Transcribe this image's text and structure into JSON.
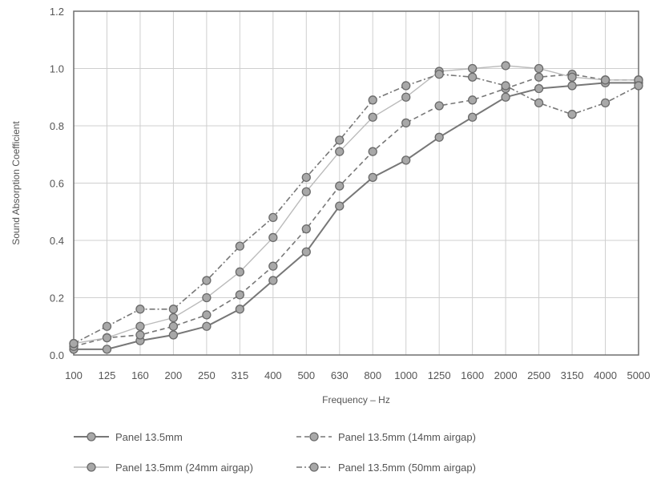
{
  "chart_data": {
    "type": "line",
    "title": "",
    "xlabel": "Frequency – Hz",
    "ylabel": "Sound Absorption Coefficient",
    "x": [
      "100",
      "125",
      "160",
      "200",
      "250",
      "315",
      "400",
      "500",
      "630",
      "800",
      "1000",
      "1250",
      "1600",
      "2000",
      "2500",
      "3150",
      "4000",
      "5000"
    ],
    "ylim": [
      0,
      1.2
    ],
    "yticks": [
      "0.0",
      "0.2",
      "0.4",
      "0.6",
      "0.8",
      "1.0",
      "1.2"
    ],
    "grid": true,
    "legend_position": "bottom",
    "series": [
      {
        "name": "Panel 13.5mm",
        "style": "solid",
        "color": "#777777",
        "values": [
          0.02,
          0.02,
          0.05,
          0.07,
          0.1,
          0.16,
          0.26,
          0.36,
          0.52,
          0.62,
          0.68,
          0.76,
          0.83,
          0.9,
          0.93,
          0.94,
          0.95,
          0.95
        ]
      },
      {
        "name": "Panel 13.5mm  (14mm airgap)",
        "style": "dashed",
        "color": "#777777",
        "values": [
          0.03,
          0.06,
          0.07,
          0.1,
          0.14,
          0.21,
          0.31,
          0.44,
          0.59,
          0.71,
          0.81,
          0.87,
          0.89,
          0.93,
          0.97,
          0.98,
          0.96,
          0.96
        ]
      },
      {
        "name": "Panel 13.5mm  (24mm airgap)",
        "style": "solid-light",
        "color": "#bbbbbb",
        "values": [
          0.04,
          0.06,
          0.1,
          0.13,
          0.2,
          0.29,
          0.41,
          0.57,
          0.71,
          0.83,
          0.9,
          0.99,
          1.0,
          1.01,
          1.0,
          0.97,
          0.96,
          0.96
        ]
      },
      {
        "name": "Panel 13.5mm  (50mm airgap)",
        "style": "dashdot",
        "color": "#777777",
        "values": [
          0.04,
          0.1,
          0.16,
          0.16,
          0.26,
          0.38,
          0.48,
          0.62,
          0.75,
          0.89,
          0.94,
          0.98,
          0.97,
          0.94,
          0.88,
          0.84,
          0.88,
          0.94
        ]
      }
    ]
  }
}
